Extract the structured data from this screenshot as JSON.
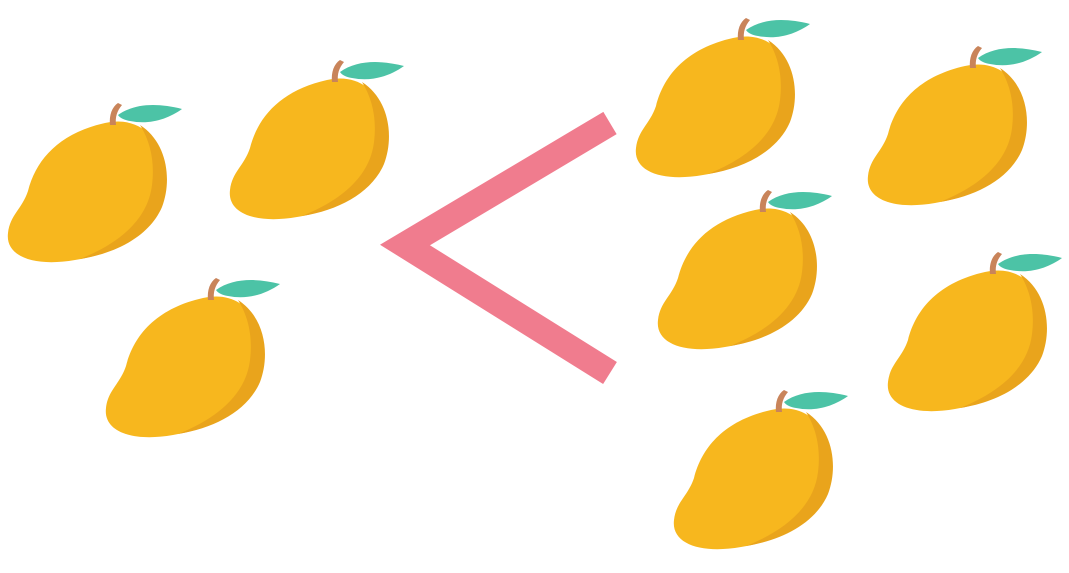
{
  "comparison": {
    "symbol": "<",
    "symbol_meaning": "less than",
    "left_group": {
      "item": "mango-icon",
      "count": 3
    },
    "right_group": {
      "item": "mango-icon",
      "count": 6
    }
  },
  "colors": {
    "mango_body": "#F7B71E",
    "mango_shade": "#E9A41C",
    "mango_stem": "#C9845A",
    "mango_leaf": "#4CC3A6",
    "symbol": "#F07C8E",
    "background": "#FFFFFF"
  }
}
